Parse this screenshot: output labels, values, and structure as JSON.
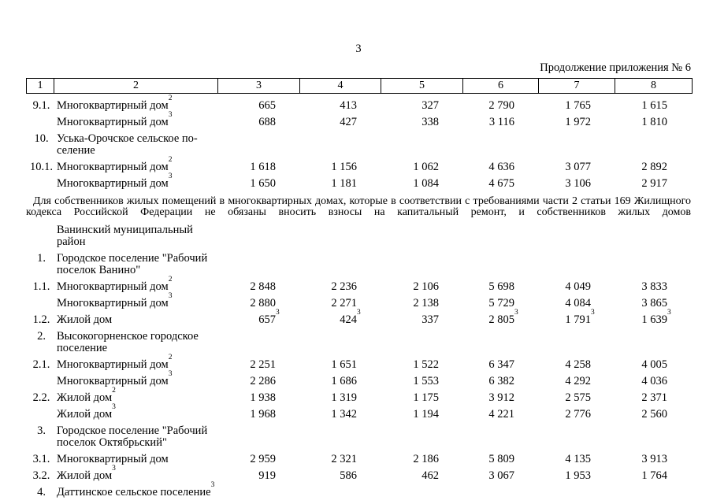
{
  "page": {
    "number": "3",
    "continuation": "Продолжение приложения № 6"
  },
  "table": {
    "columns": [
      "1",
      "2",
      "3",
      "4",
      "5",
      "6",
      "7",
      "8"
    ]
  },
  "section1_rows": [
    {
      "num": "9.1.",
      "label": "Многоквартирный дом",
      "label_sup": "2",
      "values": [
        "665",
        "413",
        "327",
        "2 790",
        "1 765",
        "1 615"
      ]
    },
    {
      "num": "",
      "label": "Многоквартирный дом",
      "label_sup": "3",
      "values": [
        "688",
        "427",
        "338",
        "3 116",
        "1 972",
        "1 810"
      ]
    },
    {
      "num": "10.",
      "label": "Уська-Орочское сельское по-",
      "label2": "селение",
      "values": []
    },
    {
      "num": "10.1.",
      "label": "Многоквартирный дом",
      "label_sup": "2",
      "values": [
        "1 618",
        "1 156",
        "1 062",
        "4 636",
        "3 077",
        "2 892"
      ]
    },
    {
      "num": "",
      "label": "Многоквартирный дом",
      "label_sup": "3",
      "values": [
        "1 650",
        "1 181",
        "1 084",
        "4 675",
        "3 106",
        "2 917"
      ]
    }
  ],
  "note": "Для собственников жилых помещений в многоквартирных домах, которые в соответствии с требованиями части 2 статьи 169 Жилищного кодекса Российской Федерации не обязаны вносить взносы на капитальный ремонт, и собственников жилых домов",
  "section2_rows": [
    {
      "num": "",
      "label": "Ванинский муниципальный",
      "label2": "район",
      "values": []
    },
    {
      "num": "1.",
      "label": "Городское поселение \"Рабочий",
      "label2": "поселок Ванино\"",
      "values": []
    },
    {
      "num": "1.1.",
      "label": "Многоквартирный дом",
      "label_sup": "2",
      "values": [
        "2 848",
        "2 236",
        "2 106",
        "5 698",
        "4 049",
        "3 833"
      ]
    },
    {
      "num": "",
      "label": "Многоквартирный дом",
      "label_sup": "3",
      "values": [
        "2 880",
        "2 271",
        "2 138",
        "5 729",
        "4 084",
        "3 865"
      ]
    },
    {
      "num": "1.2.",
      "label": "Жилой дом",
      "values": [
        "657",
        "424",
        "337",
        "2 805",
        "1 791",
        "1 639"
      ],
      "sups": [
        "3",
        "3",
        "",
        "3",
        "3",
        "3"
      ]
    },
    {
      "num": "2.",
      "label": "Высокогорненское городское",
      "label2": "поселение",
      "values": []
    },
    {
      "num": "2.1.",
      "label": "Многоквартирный дом",
      "label_sup": "2",
      "values": [
        "2 251",
        "1 651",
        "1 522",
        "6 347",
        "4 258",
        "4 005"
      ]
    },
    {
      "num": "",
      "label": "Многоквартирный дом",
      "label_sup": "3",
      "values": [
        "2 286",
        "1 686",
        "1 553",
        "6 382",
        "4 292",
        "4 036"
      ]
    },
    {
      "num": "2.2.",
      "label": "Жилой дом",
      "label_sup": "2",
      "values": [
        "1 938",
        "1 319",
        "1 175",
        "3 912",
        "2 575",
        "2 371"
      ]
    },
    {
      "num": "",
      "label": "Жилой дом",
      "label_sup": "3",
      "values": [
        "1 968",
        "1 342",
        "1 194",
        "4 221",
        "2 776",
        "2 560"
      ]
    },
    {
      "num": "3.",
      "label": "Городское поселение \"Рабочий",
      "label2": "поселок Октябрьский\"",
      "values": []
    },
    {
      "num": "3.1.",
      "label": "Многоквартирный дом",
      "values": [
        "2 959",
        "2 321",
        "2 186",
        "5 809",
        "4 135",
        "3 913"
      ]
    },
    {
      "num": "3.2.",
      "label": "Жилой дом",
      "label_sup": "3",
      "values": [
        "919",
        "586",
        "462",
        "3 067",
        "1 953",
        "1 764"
      ]
    },
    {
      "num": "4.",
      "label": "Даттинское сельское поселение",
      "label_sup": "3",
      "values": []
    }
  ]
}
